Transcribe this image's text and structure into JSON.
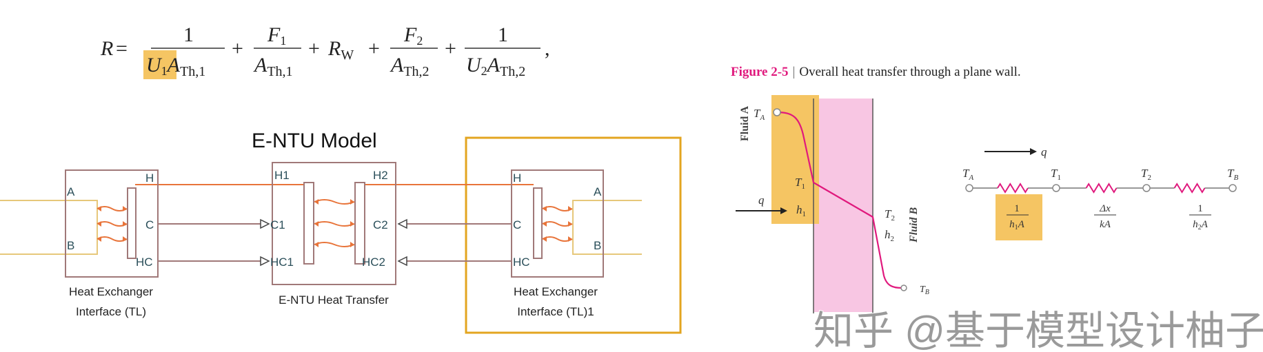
{
  "formula": {
    "lhs": "R",
    "eq": "=",
    "plus": "+",
    "comma": ",",
    "term1": {
      "num": "1",
      "den_u": "U",
      "den_u_sub": "1",
      "den_a": "A",
      "den_a_sub": "Th,1"
    },
    "term2": {
      "num": "F",
      "num_sub": "1",
      "den_a": "A",
      "den_a_sub": "Th,1"
    },
    "term3": {
      "r": "R",
      "r_sub": "W"
    },
    "term4": {
      "num": "F",
      "num_sub": "2",
      "den_a": "A",
      "den_a_sub": "Th,2"
    },
    "term5": {
      "num": "1",
      "den_u": "U",
      "den_u_sub": "2",
      "den_a": "A",
      "den_a_sub": "Th,2"
    }
  },
  "entu": {
    "title": "E-NTU Model",
    "left_block": {
      "ports": {
        "A": "A",
        "B": "B",
        "H": "H",
        "C": "C",
        "HC": "HC"
      },
      "label_line1": "Heat Exchanger",
      "label_line2": "Interface (TL)"
    },
    "middle_block": {
      "ports": {
        "H1": "H1",
        "H2": "H2",
        "C1": "C1",
        "C2": "C2",
        "HC1": "HC1",
        "HC2": "HC2"
      },
      "label": "E-NTU Heat Transfer"
    },
    "right_block": {
      "ports": {
        "A": "A",
        "B": "B",
        "H": "H",
        "C": "C",
        "HC": "HC"
      },
      "label_line1": "Heat Exchanger",
      "label_line2": "Interface (TL)1"
    }
  },
  "figure": {
    "caption_label": "Figure 2-5",
    "caption_sep": "|",
    "caption_text": "Overall heat transfer through a plane wall.",
    "fluid_a": "Fluid A",
    "fluid_b": "Fluid B",
    "ta": "T",
    "ta_sub": "A",
    "t1": "T",
    "t1_sub": "1",
    "t2": "T",
    "t2_sub": "2",
    "tb": "T",
    "tb_sub": "B",
    "q": "q",
    "h1": "h",
    "h1_sub": "1",
    "h2": "h",
    "h2_sub": "2",
    "circuit": {
      "q": "q",
      "nodes": [
        {
          "t": "T",
          "sub": "A"
        },
        {
          "t": "T",
          "sub": "1"
        },
        {
          "t": "T",
          "sub": "2"
        },
        {
          "t": "T",
          "sub": "B"
        }
      ],
      "r1": {
        "num": "1",
        "den": "h",
        "den_sub": "1",
        "den_tail": "A"
      },
      "r2": {
        "num": "Δx",
        "den": "kA"
      },
      "r3": {
        "num": "1",
        "den": "h",
        "den_sub": "2",
        "den_tail": "A"
      }
    }
  },
  "watermark": "知乎 @基于模型设计柚子",
  "colors": {
    "highlight": "#f5c563",
    "selection_box": "#e3a520",
    "wall": "#f8c6e3",
    "block_border": "#a07878",
    "heat_line": "#e8743a",
    "fluid_line": "#e6c77a",
    "caption": "#e0197d",
    "curve": "#e0197d"
  }
}
